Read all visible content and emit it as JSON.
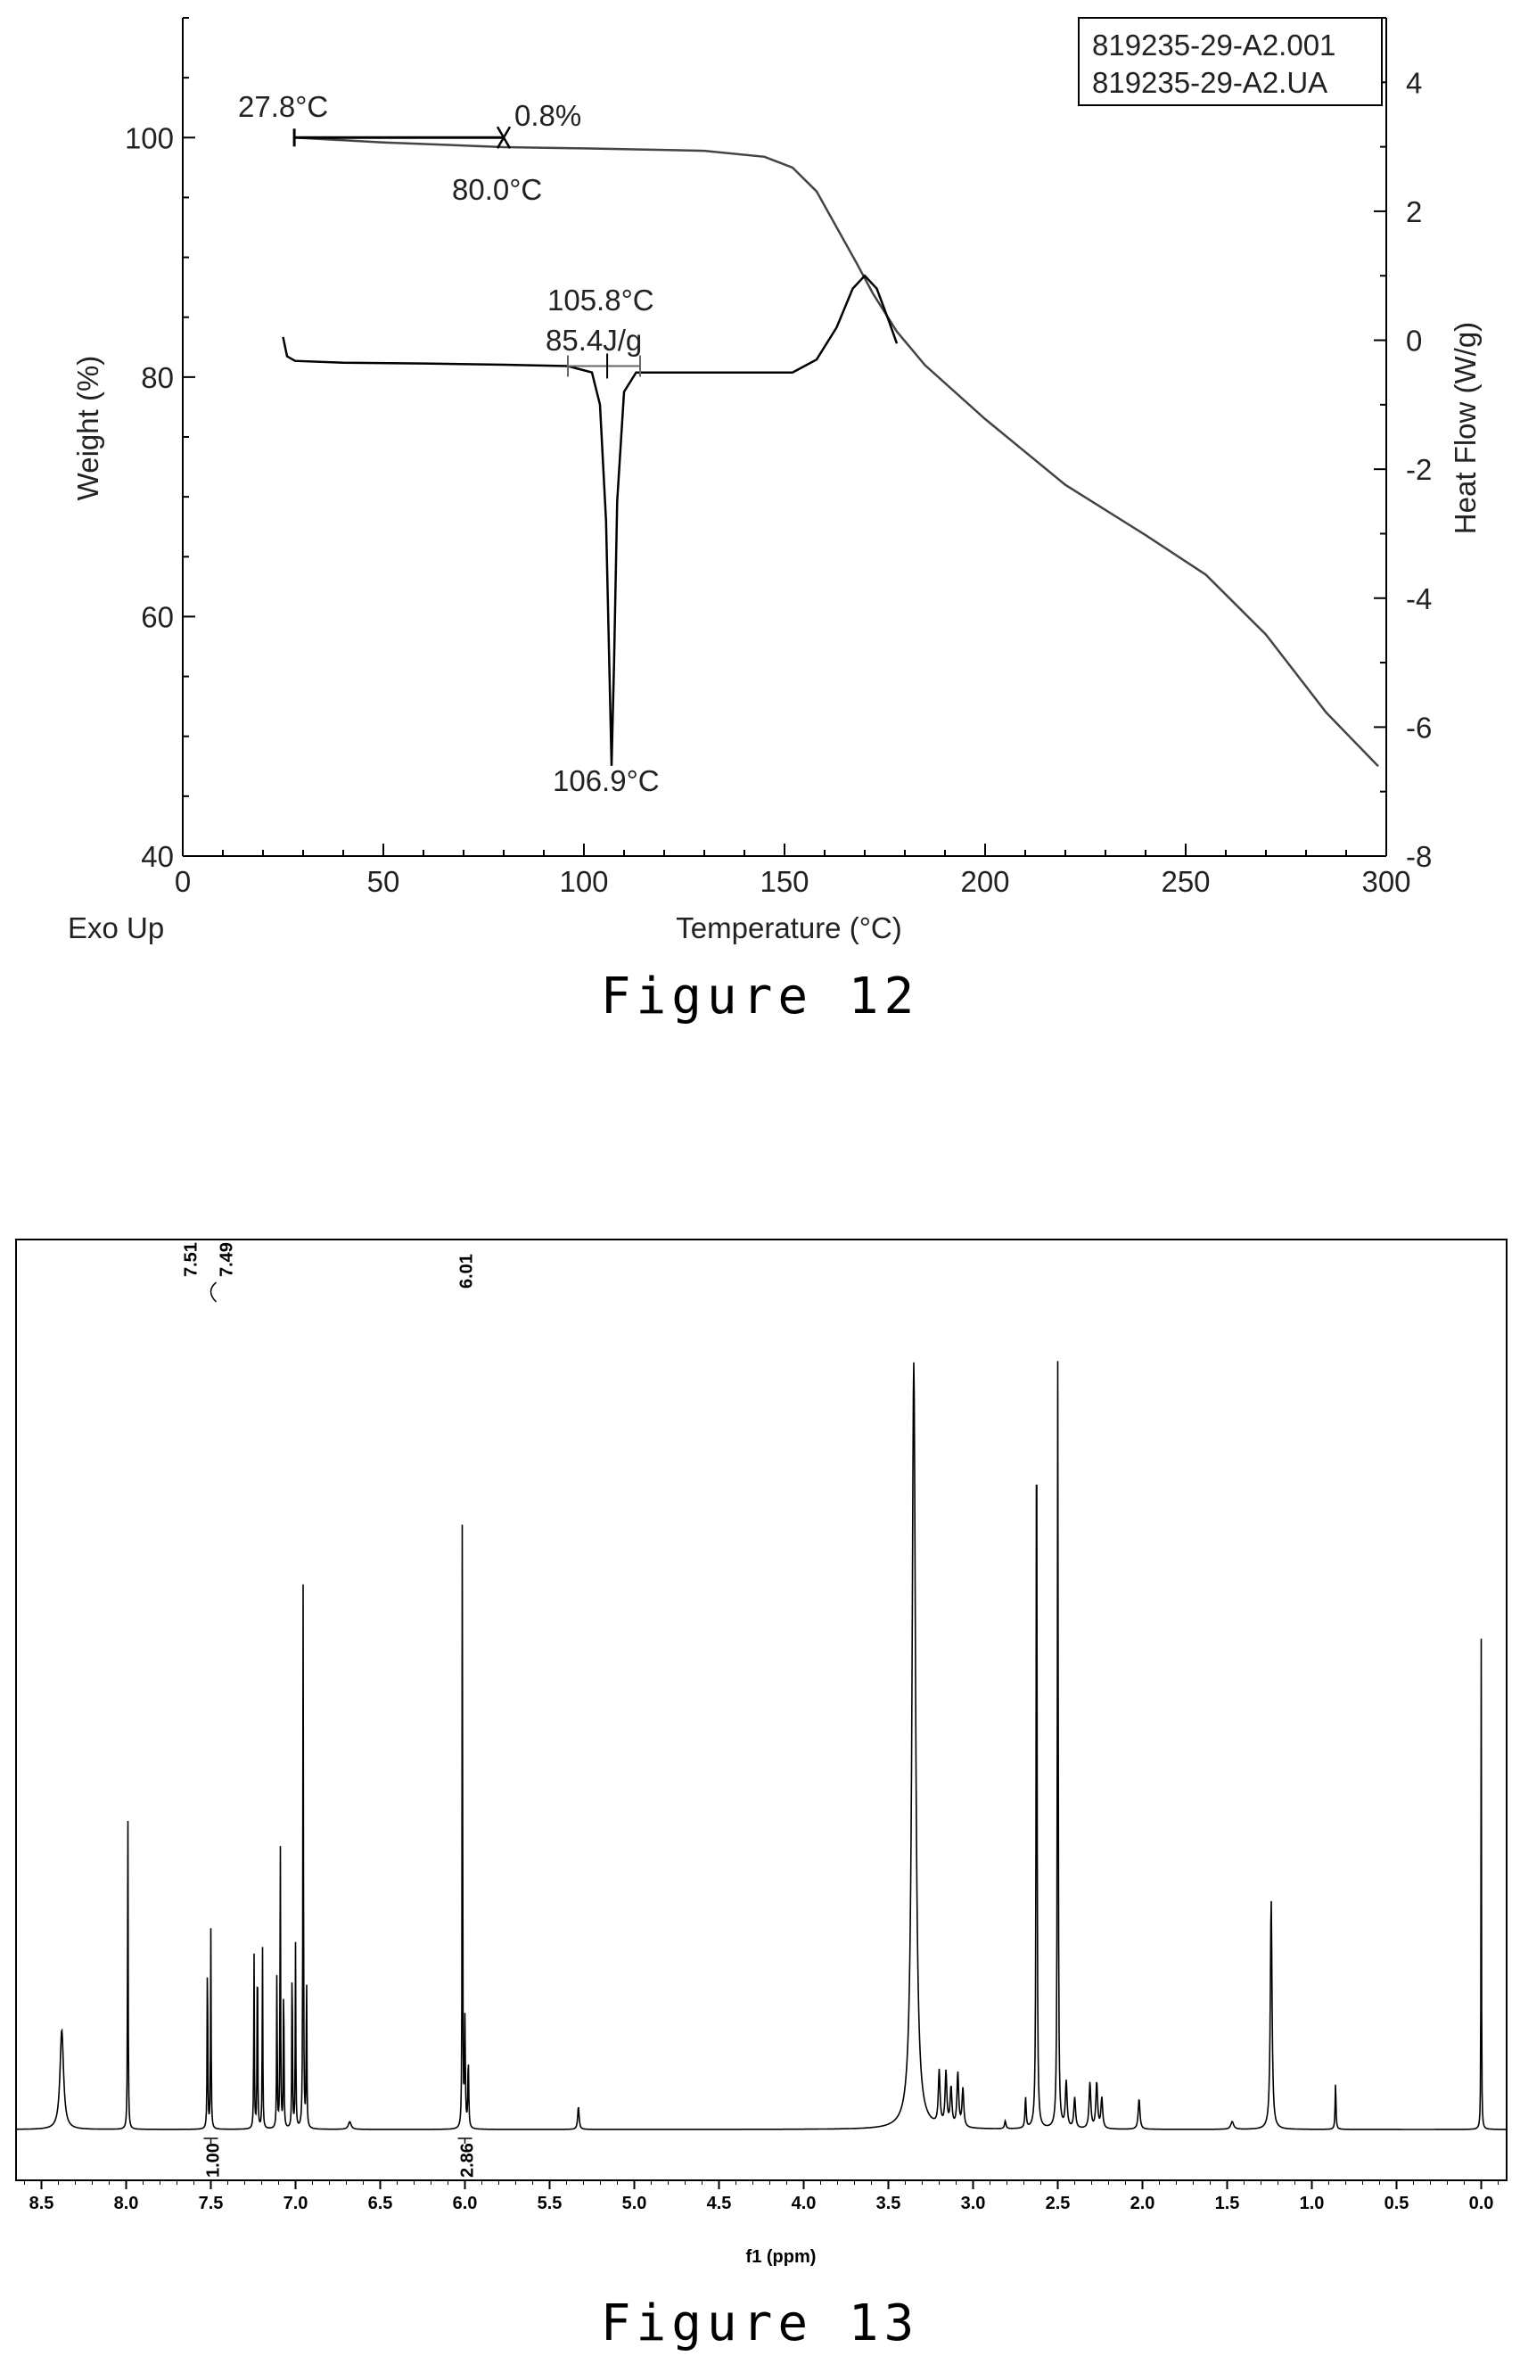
{
  "figures": [
    {
      "caption": "Figure    12",
      "chart_data": {
        "type": "line",
        "title": "",
        "xlabel": "Temperature (°C)",
        "ylabel": "Weight (%)",
        "y2label": "Heat Flow (W/g)",
        "corner_label": "Exo Up",
        "xlim": [
          0,
          300
        ],
        "ylim": [
          40,
          110
        ],
        "y2lim": [
          -8,
          5
        ],
        "x_ticks": [
          "0",
          "50",
          "100",
          "150",
          "200",
          "250",
          "300"
        ],
        "y_ticks": [
          "40",
          "60",
          "80",
          "100"
        ],
        "y2_ticks": [
          "-8",
          "-6",
          "-4",
          "-2",
          "0",
          "2",
          "4"
        ],
        "legend": [
          "819235-29-A2.001",
          "819235-29-A2.UA"
        ],
        "legend_position": "top-right",
        "annotations": [
          "27.8°C",
          "0.8%",
          "80.0°C",
          "105.8°C",
          "85.4J/g",
          "106.9°C"
        ],
        "series": [
          {
            "name": "819235-29-A2.001",
            "axis": "left",
            "x": [
              27.8,
              50,
              80,
              100,
              130,
              145,
              152,
              158,
              163,
              168,
              172,
              178,
              185,
              200,
              220,
              240,
              255,
              270,
              285,
              298
            ],
            "y": [
              100,
              99.6,
              99.2,
              99.1,
              98.9,
              98.4,
              97.5,
              95.5,
              92.5,
              89.5,
              87,
              83.8,
              81,
              76.5,
              71,
              66.8,
              63.5,
              58.5,
              52,
              47.5
            ]
          },
          {
            "name": "819235-29-A2.UA",
            "axis": "right",
            "x": [
              25,
              26,
              28,
              40,
              60,
              80,
              96,
              102,
              104,
              105.5,
              106.3,
              106.9,
              107.5,
              108.3,
              110,
              113,
              120,
              140,
              152,
              158,
              163,
              167,
              170,
              173,
              176,
              178
            ],
            "y": [
              0.05,
              -0.25,
              -0.32,
              -0.35,
              -0.36,
              -0.38,
              -0.4,
              -0.5,
              -1.0,
              -2.8,
              -5.0,
              -6.6,
              -5.0,
              -2.5,
              -0.8,
              -0.5,
              -0.5,
              -0.5,
              -0.5,
              -0.3,
              0.2,
              0.8,
              1.0,
              0.8,
              0.3,
              -0.05
            ]
          }
        ]
      }
    },
    {
      "caption": "Figure    13",
      "chart_data": {
        "type": "line",
        "title": "",
        "xlabel": "f1 (ppm)",
        "ylabel": "",
        "xlim": [
          8.65,
          -0.15
        ],
        "x_reversed": true,
        "x_ticks": [
          "8.5",
          "8.0",
          "7.5",
          "7.0",
          "6.5",
          "6.0",
          "5.5",
          "5.0",
          "4.5",
          "4.0",
          "3.5",
          "3.0",
          "2.5",
          "2.0",
          "1.5",
          "1.0",
          "0.5",
          "0.0"
        ],
        "peak_labels": [
          "7.51",
          "7.49",
          "6.01"
        ],
        "integrals": [
          {
            "ppm": 7.5,
            "value": "1.00"
          },
          {
            "ppm": 6.0,
            "value": "2.86"
          }
        ],
        "peaks": [
          {
            "ppm": 8.38,
            "height": 0.13,
            "width": 0.025
          },
          {
            "ppm": 7.99,
            "height": 0.43,
            "width": 0.004
          },
          {
            "ppm": 7.52,
            "height": 0.25,
            "width": 0.004
          },
          {
            "ppm": 7.5,
            "height": 0.26,
            "width": 0.004
          },
          {
            "ppm": 7.245,
            "height": 0.23,
            "width": 0.004
          },
          {
            "ppm": 7.225,
            "height": 0.26,
            "width": 0.004
          },
          {
            "ppm": 7.195,
            "height": 0.24,
            "width": 0.004
          },
          {
            "ppm": 7.11,
            "height": 0.21,
            "width": 0.004
          },
          {
            "ppm": 7.09,
            "height": 0.39,
            "width": 0.004
          },
          {
            "ppm": 7.07,
            "height": 0.21,
            "width": 0.004
          },
          {
            "ppm": 7.02,
            "height": 0.24,
            "width": 0.004
          },
          {
            "ppm": 7.0,
            "height": 0.24,
            "width": 0.004
          },
          {
            "ppm": 6.955,
            "height": 0.72,
            "width": 0.004
          },
          {
            "ppm": 6.935,
            "height": 0.21,
            "width": 0.004
          },
          {
            "ppm": 6.68,
            "height": 0.01,
            "width": 0.02
          },
          {
            "ppm": 6.015,
            "height": 1.0,
            "width": 0.003
          },
          {
            "ppm": 6.0,
            "height": 0.14,
            "width": 0.006
          },
          {
            "ppm": 5.98,
            "height": 0.09,
            "width": 0.006
          },
          {
            "ppm": 5.33,
            "height": 0.03,
            "width": 0.01
          },
          {
            "ppm": 3.35,
            "height": 1.0,
            "width": 0.025
          },
          {
            "ppm": 3.2,
            "height": 0.07,
            "width": 0.012
          },
          {
            "ppm": 3.16,
            "height": 0.07,
            "width": 0.012
          },
          {
            "ppm": 3.13,
            "height": 0.05,
            "width": 0.012
          },
          {
            "ppm": 3.09,
            "height": 0.07,
            "width": 0.012
          },
          {
            "ppm": 3.06,
            "height": 0.05,
            "width": 0.012
          },
          {
            "ppm": 2.81,
            "height": 0.01,
            "width": 0.01
          },
          {
            "ppm": 2.69,
            "height": 0.04,
            "width": 0.008
          },
          {
            "ppm": 2.625,
            "height": 1.0,
            "width": 0.006
          },
          {
            "ppm": 2.5,
            "height": 1.0,
            "width": 0.006
          },
          {
            "ppm": 2.45,
            "height": 0.06,
            "width": 0.012
          },
          {
            "ppm": 2.4,
            "height": 0.04,
            "width": 0.012
          },
          {
            "ppm": 2.31,
            "height": 0.06,
            "width": 0.012
          },
          {
            "ppm": 2.27,
            "height": 0.06,
            "width": 0.012
          },
          {
            "ppm": 2.24,
            "height": 0.04,
            "width": 0.012
          },
          {
            "ppm": 2.02,
            "height": 0.04,
            "width": 0.012
          },
          {
            "ppm": 1.47,
            "height": 0.01,
            "width": 0.02
          },
          {
            "ppm": 1.24,
            "height": 0.3,
            "width": 0.012
          },
          {
            "ppm": 0.86,
            "height": 0.06,
            "width": 0.006
          },
          {
            "ppm": 0.0,
            "height": 0.64,
            "width": 0.003
          }
        ]
      }
    }
  ]
}
